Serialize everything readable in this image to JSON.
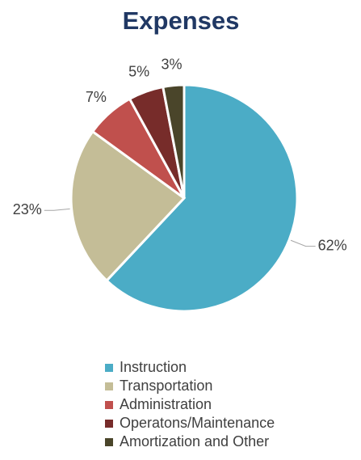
{
  "chart_data": {
    "type": "pie",
    "title": "Expenses",
    "categories": [
      "Instruction",
      "Transportation",
      "Administration",
      "Operatons/Maintenance",
      "Amortization and Other"
    ],
    "values": [
      62,
      23,
      7,
      5,
      3
    ],
    "value_labels": [
      "62%",
      "23%",
      "7%",
      "5%",
      "3%"
    ],
    "colors": [
      "#4bacc6",
      "#c4bd97",
      "#c0504d",
      "#772c2a",
      "#4a452a"
    ],
    "legend": "bottom"
  }
}
